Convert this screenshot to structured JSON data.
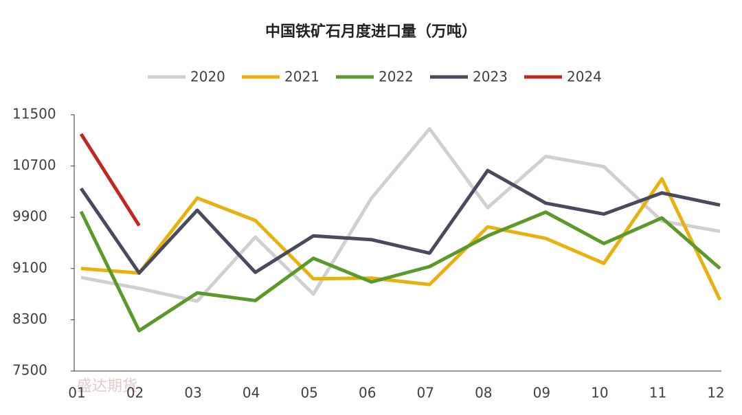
{
  "chart_data": {
    "type": "line",
    "title": "中国铁矿石月度进口量（万吨）",
    "categories": [
      "01",
      "02",
      "03",
      "04",
      "05",
      "06",
      "07",
      "08",
      "09",
      "10",
      "11",
      "12"
    ],
    "series": [
      {
        "name": "2020",
        "color": "#d3cfd0",
        "values": [
          8960,
          8790,
          8590,
          9590,
          8700,
          10200,
          11280,
          10050,
          10850,
          10690,
          9840,
          9680
        ]
      },
      {
        "name": "2021",
        "color": "#e8b10e",
        "values": [
          9100,
          9030,
          10200,
          9850,
          8940,
          8950,
          8850,
          9750,
          9570,
          9180,
          10500,
          8610
        ]
      },
      {
        "name": "2022",
        "color": "#5a9a2a",
        "values": [
          9990,
          8130,
          8720,
          8600,
          9260,
          8890,
          9130,
          9610,
          9980,
          9490,
          9890,
          9100
        ]
      },
      {
        "name": "2023",
        "color": "#4a4a5e",
        "values": [
          10350,
          9030,
          10010,
          9040,
          9610,
          9550,
          9340,
          10630,
          10120,
          9950,
          10280,
          10090
        ]
      },
      {
        "name": "2024",
        "color": "#c0281e",
        "values": [
          11200,
          9770,
          null,
          null,
          null,
          null,
          null,
          null,
          null,
          null,
          null,
          null
        ]
      }
    ],
    "ylim": [
      7500,
      11500
    ],
    "yticks": [
      7500,
      8300,
      9100,
      9900,
      10700,
      11500
    ],
    "watermark": "盛达期货"
  }
}
